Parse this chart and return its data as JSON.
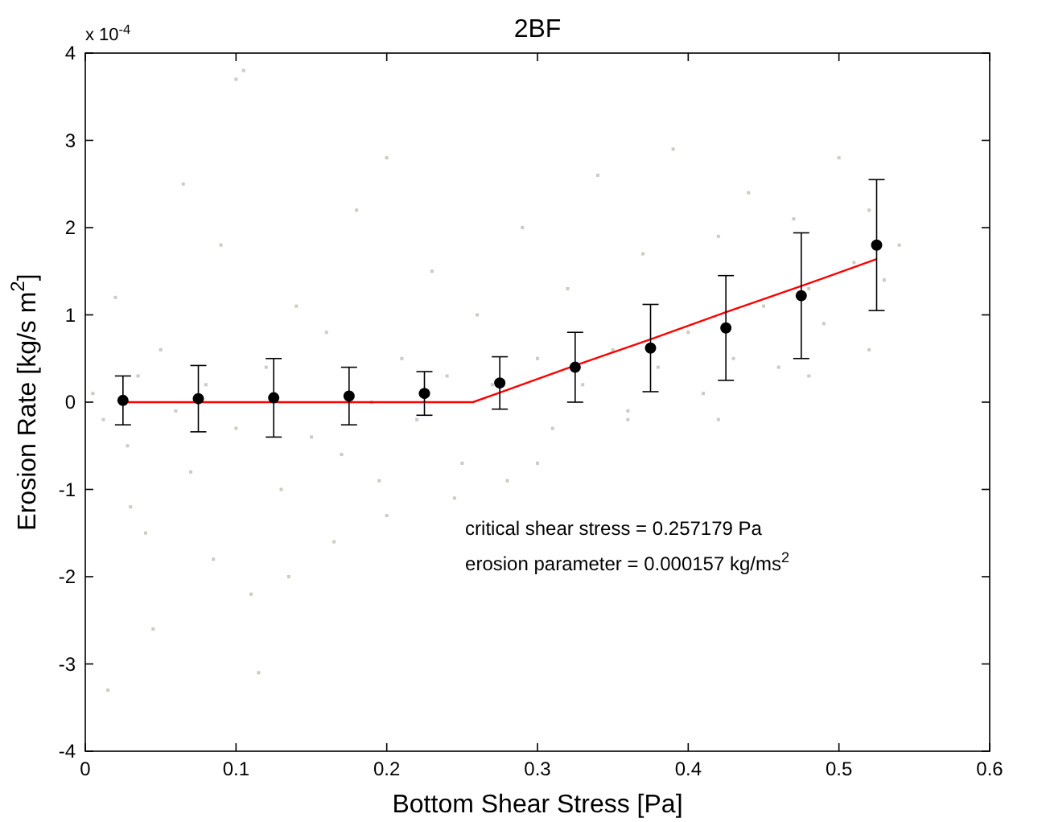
{
  "chart_data": {
    "type": "scatter",
    "title": "2BF",
    "xlabel": "Bottom Shear Stress [Pa]",
    "ylabel": "Erosion Rate [kg/s m$^{2}$]",
    "xlim": [
      0,
      0.6
    ],
    "ylim": [
      -4,
      4
    ],
    "xticks": [
      0,
      0.1,
      0.2,
      0.3,
      0.4,
      0.5,
      0.6
    ],
    "yticks": [
      -4,
      -3,
      -2,
      -1,
      0,
      1,
      2,
      3,
      4
    ],
    "grid": false,
    "annotations": [
      "x 10$^{-4}$",
      "critical shear stress = 0.257179 Pa",
      "erosion parameter = 0.000157 kg/ms$^{2}$"
    ],
    "series": [
      {
        "color": "#cfcac2",
        "marker": "square",
        "x": [
          0.005,
          0.012,
          0.02,
          0.028,
          0.035,
          0.04,
          0.05,
          0.06,
          0.065,
          0.07,
          0.08,
          0.09,
          0.1,
          0.105,
          0.11,
          0.12,
          0.13,
          0.14,
          0.15,
          0.16,
          0.17,
          0.18,
          0.19,
          0.2,
          0.21,
          0.22,
          0.23,
          0.24,
          0.25,
          0.26,
          0.27,
          0.28,
          0.29,
          0.3,
          0.31,
          0.32,
          0.33,
          0.34,
          0.35,
          0.36,
          0.37,
          0.38,
          0.39,
          0.4,
          0.41,
          0.42,
          0.43,
          0.44,
          0.45,
          0.46,
          0.47,
          0.48,
          0.49,
          0.5,
          0.51,
          0.52,
          0.53,
          0.54,
          0.015,
          0.045,
          0.085,
          0.115,
          0.135,
          0.165,
          0.195,
          0.245,
          0.3,
          0.36,
          0.42,
          0.48,
          0.52,
          0.1,
          0.2,
          0.03
        ],
        "values": [
          0.1,
          -0.2,
          1.2,
          -0.5,
          0.3,
          -1.5,
          0.6,
          -0.1,
          2.5,
          -0.8,
          0.2,
          1.8,
          -0.3,
          3.8,
          -2.2,
          0.4,
          -1.0,
          1.1,
          -0.4,
          0.8,
          -0.6,
          2.2,
          0.0,
          -1.3,
          0.5,
          -0.2,
          1.5,
          0.3,
          -0.7,
          1.0,
          0.2,
          -0.9,
          2.0,
          0.5,
          -0.3,
          1.3,
          0.2,
          2.6,
          0.6,
          -0.2,
          1.7,
          0.4,
          2.9,
          0.8,
          0.1,
          1.9,
          0.5,
          2.4,
          1.1,
          0.4,
          2.1,
          1.3,
          0.9,
          2.8,
          1.6,
          2.2,
          1.4,
          1.8,
          -3.3,
          -2.6,
          -1.8,
          -3.1,
          -2.0,
          -1.6,
          -0.9,
          -1.1,
          -0.7,
          -0.1,
          -0.2,
          0.3,
          0.6,
          3.7,
          2.8,
          -1.2
        ]
      },
      {
        "type": "line",
        "color": "#ff0000",
        "marker": "none",
        "line_style": "solid",
        "x": [
          0.025,
          0.257179,
          0.275,
          0.325,
          0.375,
          0.425,
          0.475,
          0.525
        ],
        "values": [
          0,
          0,
          0.11,
          0.42,
          0.72,
          1.03,
          1.33,
          1.64
        ]
      },
      {
        "color": "#000000",
        "marker": "circle",
        "x": [
          0.025,
          0.075,
          0.125,
          0.175,
          0.225,
          0.275,
          0.325,
          0.375,
          0.425,
          0.475,
          0.525
        ],
        "values": [
          0.02,
          0.04,
          0.05,
          0.07,
          0.1,
          0.22,
          0.4,
          0.62,
          0.85,
          1.22,
          1.8
        ],
        "errors": [
          0.28,
          0.38,
          0.45,
          0.33,
          0.25,
          0.3,
          0.4,
          0.5,
          0.6,
          0.72,
          0.75
        ]
      }
    ]
  }
}
